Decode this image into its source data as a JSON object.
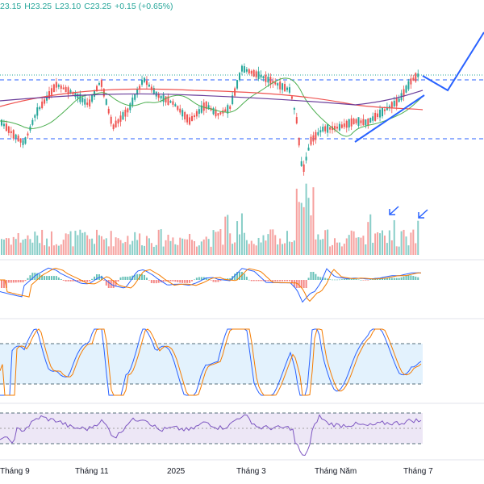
{
  "legend": {
    "open": "23.15",
    "high": "H23.25",
    "low": "L23.10",
    "close": "C23.25",
    "change": "+0.15 (+0.65%)"
  },
  "chart_data": {
    "type": "candlestick",
    "x_tick_labels": [
      "Tháng 9",
      "Tháng 11",
      "2025",
      "Tháng 3",
      "Tháng Năm",
      "Tháng 7"
    ],
    "last": {
      "open": 23.15,
      "high": 23.25,
      "low": 23.1,
      "close": 23.25,
      "change": 0.15,
      "change_pct": 0.65
    },
    "resistance_level": 23.0,
    "support_level": 20.1,
    "indicators": [
      "volume",
      "macd",
      "stochastic",
      "rsi"
    ],
    "stochastic_band": [
      20,
      80
    ],
    "rsi_band": [
      30,
      70
    ],
    "colors": {
      "up": "#26a69a",
      "down": "#ef5350",
      "volume_up": "#26a69a",
      "volume_down": "#ef5350",
      "ma_short": "#ef5350",
      "ma_mid": "#6a3d9a",
      "ma_long": "#4caf50",
      "stoch_k": "#2962ff",
      "stoch_d": "#f57c00",
      "rsi": "#7e57c2",
      "annotation": "#2962ff"
    }
  }
}
